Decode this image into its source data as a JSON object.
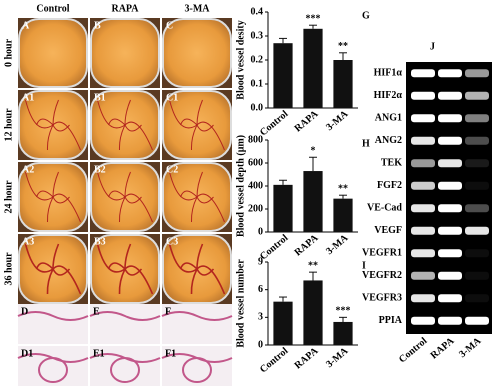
{
  "photo_panel": {
    "columns": [
      "Control",
      "RAPA",
      "3-MA"
    ],
    "rows": [
      "0 hour",
      "12 hour",
      "24 hour",
      "36 hour"
    ],
    "labels": [
      [
        "A",
        "B",
        "C"
      ],
      [
        "A1",
        "B1",
        "C1"
      ],
      [
        "A2",
        "B2",
        "C2"
      ],
      [
        "A3",
        "B3",
        "C3"
      ]
    ]
  },
  "histology": {
    "labels": [
      [
        "D",
        "E",
        "F"
      ],
      [
        "D1",
        "E1",
        "F1"
      ]
    ]
  },
  "chart_data": [
    {
      "type": "bar",
      "panel": "G",
      "ylabel": "Blood vessel desity",
      "categories": [
        "Control",
        "RAPA",
        "3-MA"
      ],
      "values": [
        0.27,
        0.33,
        0.2
      ],
      "errors": [
        0.02,
        0.015,
        0.03
      ],
      "significance": [
        null,
        "***",
        "**"
      ],
      "color": "#111111",
      "ylim": [
        0,
        0.4
      ],
      "yticks": [
        {
          "value": 0,
          "label": "0.0"
        },
        0.1,
        0.2,
        0.3,
        0.4
      ]
    },
    {
      "type": "bar",
      "panel": "H",
      "ylabel": "Blood vessel depth (μm)",
      "categories": [
        "Control",
        "RAPA",
        "3-MA"
      ],
      "values": [
        410,
        530,
        290
      ],
      "errors": [
        40,
        120,
        30
      ],
      "significance": [
        null,
        "*",
        "**"
      ],
      "color": "#111111",
      "ylim": [
        0,
        800
      ],
      "yticks": [
        0,
        200,
        400,
        600,
        800
      ]
    },
    {
      "type": "bar",
      "panel": "I",
      "ylabel": "Blood vessel number",
      "categories": [
        "Control",
        "RAPA",
        "3-MA"
      ],
      "values": [
        4.7,
        7.0,
        2.5
      ],
      "errors": [
        0.5,
        0.9,
        0.5
      ],
      "significance": [
        null,
        "**",
        "***"
      ],
      "color": "#111111",
      "ylim": [
        0,
        9
      ],
      "yticks": [
        0,
        3,
        6,
        9
      ]
    }
  ],
  "gel": {
    "panel": "J",
    "genes": [
      "HIF1α",
      "HIF2α",
      "ANG1",
      "ANG2",
      "TEK",
      "FGF2",
      "VE-Cad",
      "VEGF",
      "VEGFR1",
      "VEGFR2",
      "VEGFR3",
      "PPIA"
    ],
    "lanes": [
      "Control",
      "RAPA",
      "3-MA"
    ]
  }
}
